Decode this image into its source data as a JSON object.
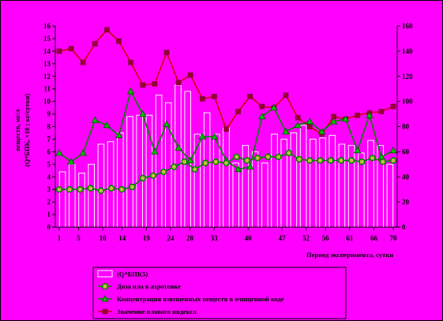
{
  "chart_data": {
    "type": "bar+line",
    "title": "",
    "xlabel": "Период эксперимента, сутки",
    "ylabel_left": "(Q*БПК, ×10 ; кг/сутки)",
    "ylabel_left_extra": [
      "",
      "веществ, мг/л"
    ],
    "ylabel_right": "",
    "ylim_left": [
      0,
      16
    ],
    "ylim_right": [
      0,
      160
    ],
    "yticks_left": [
      "0",
      "1",
      "2",
      "3",
      "4",
      "5",
      "6",
      "7",
      "8",
      "9",
      "10",
      "11",
      "12",
      "13",
      "14",
      "15",
      "16"
    ],
    "yticks_right": [
      "0",
      "20",
      "40",
      "60",
      "80",
      "100",
      "120",
      "140",
      "160"
    ],
    "xticks": [
      "1",
      "5",
      "10",
      "14",
      "19",
      "24",
      "28",
      "33",
      "40",
      "47",
      "52",
      "56",
      "61",
      "66",
      "70"
    ],
    "series": [
      {
        "name": "(Q*БПК5)",
        "kind": "bar",
        "axis": "left",
        "values": [
          4.4,
          5.0,
          4.3,
          5.0,
          6.6,
          6.8,
          7.5,
          8.8,
          8.9,
          8.9,
          10.5,
          9.9,
          11.3,
          10.8,
          7.4,
          9.1,
          7.4,
          7.9,
          5.1,
          6.5,
          6.0,
          5.1,
          7.4,
          7.0,
          7.5,
          8.1,
          7.0,
          7.1,
          7.3,
          6.6,
          6.5,
          5.9,
          6.9,
          6.5,
          5.0
        ]
      },
      {
        "name": "Доза ила в аэротенке",
        "kind": "line",
        "axis": "left",
        "color": "#008000",
        "values": [
          3.0,
          3.0,
          3.0,
          3.1,
          2.9,
          3.1,
          3.0,
          3.2,
          3.9,
          4.1,
          4.4,
          4.8,
          5.2,
          4.6,
          5.1,
          5.2,
          5.1,
          5.6,
          5.3,
          5.5,
          5.6,
          5.6,
          5.9,
          5.4,
          5.3,
          5.3,
          5.3,
          5.3,
          5.3,
          5.2,
          5.5,
          5.2,
          5.3
        ]
      },
      {
        "name": "Концентрация взвешенных веществ в очищенной воде",
        "kind": "line",
        "axis": "left",
        "color": "#008000",
        "values": [
          5.9,
          5.2,
          5.9,
          8.5,
          8.1,
          7.3,
          10.8,
          9.0,
          6.0,
          8.2,
          6.3,
          5.3,
          7.2,
          7.2,
          5.3,
          4.6,
          4.8,
          8.8,
          9.5,
          7.6,
          8.1,
          8.4,
          7.6,
          8.4,
          8.6,
          6.1,
          8.9,
          5.6,
          6.1
        ]
      },
      {
        "name": "Значение илового индекса",
        "kind": "line",
        "axis": "right",
        "color": "#cc0000",
        "values": [
          140,
          142,
          131,
          146,
          157,
          148,
          131,
          113,
          114,
          139,
          115,
          121,
          102,
          104,
          78,
          92,
          104,
          96,
          95,
          105,
          87,
          80,
          74,
          88,
          86,
          89,
          91,
          92,
          96
        ]
      }
    ],
    "legend_position": "bottom-center",
    "grid": false
  },
  "colors": {
    "background": "#ff00ff",
    "plot_area": "#ff00ff",
    "bar_fill": "#ff00ff",
    "bar_stroke": "#ffffff",
    "line_green": "#008000",
    "marker_sludge_fill": "#bfbf40",
    "marker_triangle_fill": "#00c000",
    "line_red": "#cc0000",
    "marker_square_fill": "#990033"
  }
}
